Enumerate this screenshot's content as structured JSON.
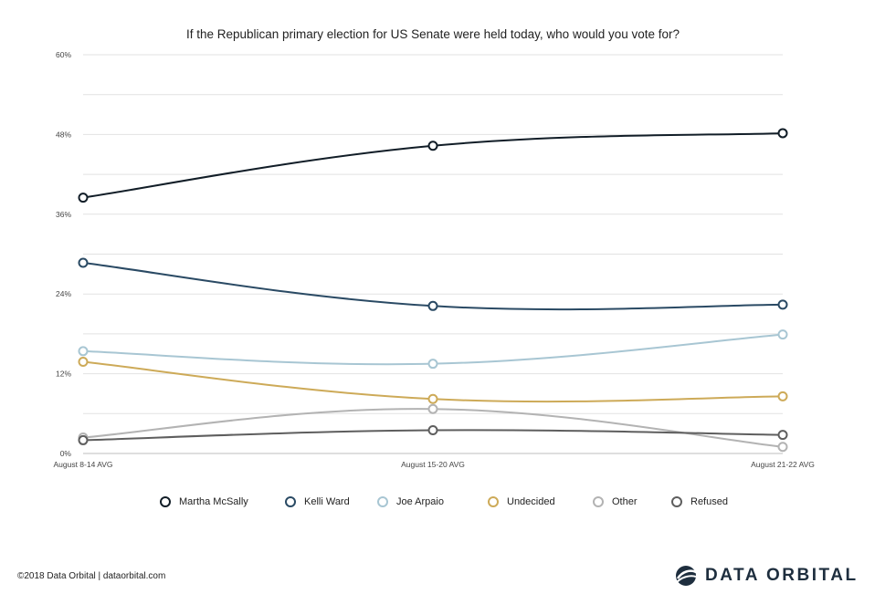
{
  "chart_data": {
    "type": "line",
    "title": "If the Republican primary election for US Senate were held today, who would you vote for?",
    "xlabel": "",
    "ylabel": "",
    "categories": [
      "August 8-14 AVG",
      "August 15-20 AVG",
      "August 21-22 AVG"
    ],
    "yticks": [
      "0%",
      "12%",
      "24%",
      "36%",
      "48%",
      "60%"
    ],
    "ylim": [
      0,
      60
    ],
    "grid": true,
    "legend_position": "bottom",
    "series": [
      {
        "name": "Martha McSally",
        "color": "#111d27",
        "values": [
          38.5,
          46.3,
          48.2
        ]
      },
      {
        "name": "Kelli Ward",
        "color": "#2a4a64",
        "values": [
          28.7,
          22.2,
          22.4
        ]
      },
      {
        "name": "Joe Arpaio",
        "color": "#a8c6d3",
        "values": [
          15.4,
          13.5,
          17.9
        ]
      },
      {
        "name": "Undecided",
        "color": "#cdaa58",
        "values": [
          13.8,
          8.2,
          8.6
        ]
      },
      {
        "name": "Other",
        "color": "#b3b3b3",
        "values": [
          2.4,
          6.7,
          1.0
        ]
      },
      {
        "name": "Refused",
        "color": "#5e5e5e",
        "values": [
          2.0,
          3.5,
          2.8
        ]
      }
    ]
  },
  "footer": {
    "credit": "©2018 Data Orbital | dataorbital.com",
    "brand": "DATA ORBITAL"
  }
}
